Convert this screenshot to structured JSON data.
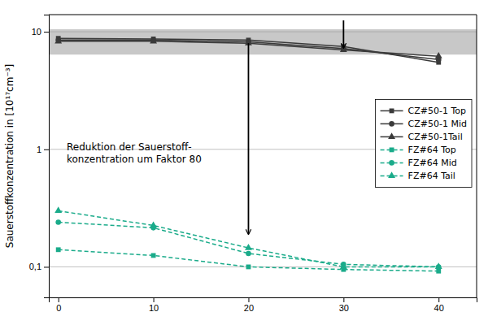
{
  "chart_data": {
    "type": "line",
    "y_label": "Sauerstoffkonzentration in [10¹⁷cm⁻³]",
    "x": [
      0,
      10,
      20,
      30,
      40
    ],
    "series": [
      {
        "name": "CZ#50-1 Top",
        "color": "#3a3a3a",
        "marker": "square",
        "line_style": "solid",
        "values": [
          8.8,
          8.7,
          8.5,
          7.5,
          5.5
        ]
      },
      {
        "name": "CZ#50-1 Mid",
        "color": "#3a3a3a",
        "marker": "circle",
        "line_style": "solid",
        "values": [
          8.5,
          8.5,
          8.2,
          7.2,
          5.8
        ]
      },
      {
        "name": "CZ#50-1Tail",
        "color": "#3a3a3a",
        "marker": "triangle",
        "line_style": "solid",
        "values": [
          8.3,
          8.3,
          8.0,
          7.0,
          6.2
        ]
      },
      {
        "name": "FZ#64 Top",
        "color": "#1aab8a",
        "marker": "square",
        "line_style": "dashed",
        "values": [
          0.14,
          0.125,
          0.1,
          0.095,
          0.092
        ]
      },
      {
        "name": "FZ#64 Mid",
        "color": "#1aab8a",
        "marker": "circle",
        "line_style": "dashed",
        "values": [
          0.24,
          0.215,
          0.13,
          0.105,
          0.1
        ]
      },
      {
        "name": "FZ#64 Tail",
        "color": "#1aab8a",
        "marker": "triangle",
        "line_style": "dashed",
        "values": [
          0.3,
          0.225,
          0.145,
          0.1,
          0.1
        ]
      }
    ],
    "bands": [
      {
        "y_start": 6.4,
        "y_end": 10.5,
        "color": "#c8c8c8"
      }
    ],
    "arrows": [
      {
        "x": 20,
        "y_start": 8.0,
        "y_end": 0.19
      },
      {
        "x": 30,
        "y_start": 12.5,
        "y_end": 7.3
      }
    ],
    "annotation": "Reduktion der Sauerstoff-\nkonzentration um Faktor 80",
    "xlim": [
      -1,
      44
    ],
    "xticks": [
      0,
      10,
      20,
      30,
      40
    ],
    "ylim": [
      0.055,
      14
    ],
    "yticks": [
      {
        "value": 0.1,
        "label": "0,1"
      },
      1,
      10
    ],
    "log": "y",
    "grid": true,
    "legend": "upper right"
  }
}
